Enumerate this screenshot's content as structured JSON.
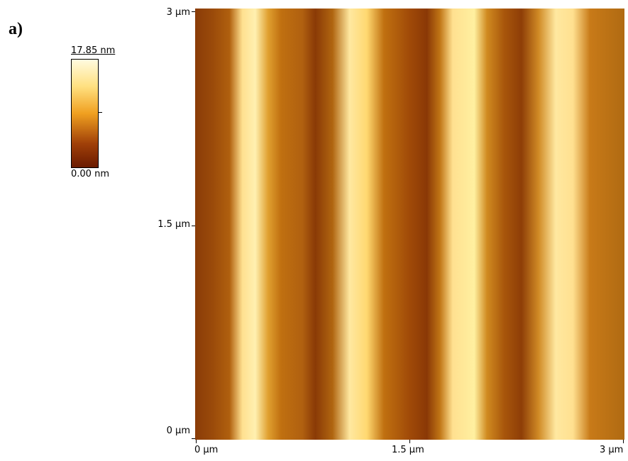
{
  "panel_label": "a)",
  "colorbar": {
    "max_label": "17.85 nm",
    "min_label": "0.00 nm"
  },
  "y_axis": {
    "ticks": [
      "3 µm",
      "1.5 µm",
      "0 µm"
    ]
  },
  "x_axis": {
    "ticks": [
      "0 µm",
      "1.5 µm",
      "3 µm"
    ]
  }
}
